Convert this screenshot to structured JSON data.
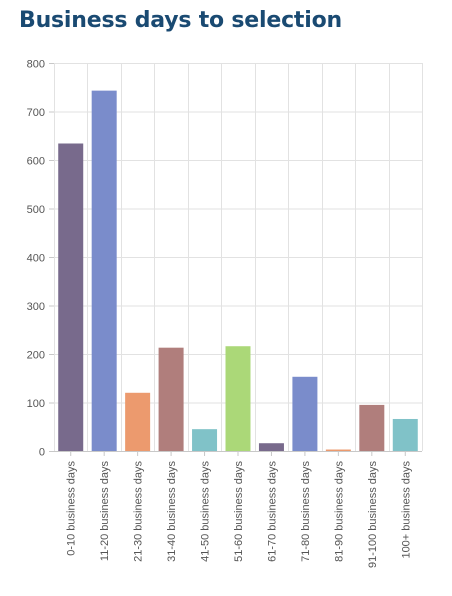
{
  "page": {
    "title": "Business days to selection"
  },
  "chart_data": {
    "type": "bar",
    "title": "",
    "xlabel": "",
    "ylabel": "",
    "ylim": [
      0,
      800
    ],
    "yticks": [
      0,
      100,
      200,
      300,
      400,
      500,
      600,
      700,
      800
    ],
    "grid": true,
    "legend": "none",
    "categories": [
      "0-10 business days",
      "11-20 business days",
      "21-30 business days",
      "31-40 business days",
      "41-50 business days",
      "51-60 business days",
      "61-70 business days",
      "71-80 business days",
      "81-90 business days",
      "91-100 business days",
      "100+ business days"
    ],
    "values": [
      633,
      742,
      119,
      212,
      44,
      215,
      15,
      152,
      2,
      94,
      65
    ],
    "colors": [
      "#786a8c",
      "#7a8ccb",
      "#ec9a6e",
      "#b07e7c",
      "#80c2c8",
      "#abd878",
      "#786a8c",
      "#7a8ccb",
      "#ec9a6e",
      "#b07e7c",
      "#80c2c8"
    ]
  }
}
